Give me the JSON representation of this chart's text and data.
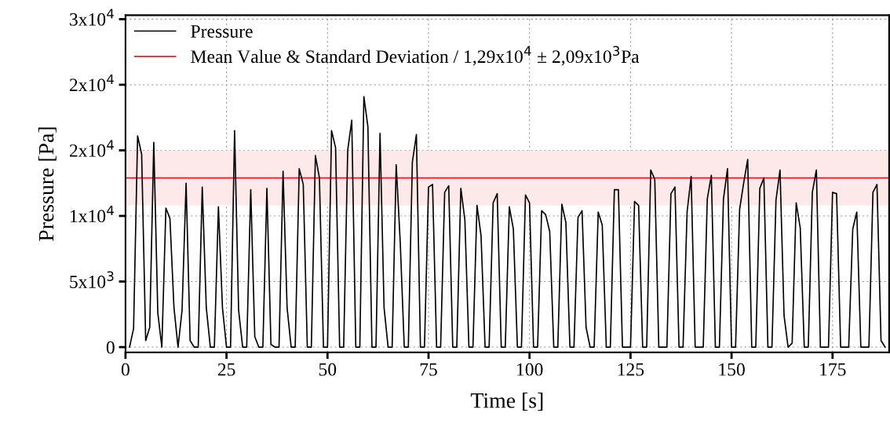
{
  "chart_data": {
    "type": "line",
    "xlabel": "Time [s]",
    "ylabel": "Pressure [Pa]",
    "x": [
      1,
      2,
      3,
      4,
      5,
      6,
      7,
      8,
      9,
      10,
      11,
      12,
      13,
      14,
      15,
      16,
      17,
      18,
      19,
      20,
      21,
      22,
      23,
      24,
      25,
      26,
      27,
      28,
      29,
      30,
      31,
      32,
      33,
      34,
      35,
      36,
      37,
      38,
      39,
      40,
      41,
      42,
      43,
      44,
      45,
      46,
      47,
      48,
      49,
      50,
      51,
      52,
      53,
      54,
      55,
      56,
      57,
      58,
      59,
      60,
      61,
      62,
      63,
      64,
      65,
      66,
      67,
      68,
      69,
      70,
      71,
      72,
      73,
      74,
      75,
      76,
      77,
      78,
      79,
      80,
      81,
      82,
      83,
      84,
      85,
      86,
      87,
      88,
      89,
      90,
      91,
      92,
      93,
      94,
      95,
      96,
      97,
      98,
      99,
      100,
      101,
      102,
      103,
      104,
      105,
      106,
      107,
      108,
      109,
      110,
      111,
      112,
      113,
      114,
      115,
      116,
      117,
      118,
      119,
      120,
      121,
      122,
      123,
      124,
      125,
      126,
      127,
      128,
      129,
      130,
      131,
      132,
      133,
      134,
      135,
      136,
      137,
      138,
      139,
      140,
      141,
      142,
      143,
      144,
      145,
      146,
      147,
      148,
      149,
      150,
      151,
      152,
      153,
      154,
      155,
      156,
      157,
      158,
      159,
      160,
      161,
      162,
      163,
      164,
      165,
      166,
      167,
      168,
      169,
      170,
      171,
      172,
      173,
      174,
      175,
      176,
      177,
      178,
      179,
      180,
      181,
      182,
      183,
      184,
      185,
      186,
      187,
      188
    ],
    "series": [
      {
        "name": "Pressure",
        "color": "#000000",
        "values": [
          0,
          1400,
          16100,
          14700,
          500,
          1500,
          15600,
          2600,
          0,
          10600,
          9800,
          3000,
          0,
          2800,
          12500,
          500,
          0,
          0,
          12200,
          3000,
          0,
          0,
          10700,
          3000,
          0,
          0,
          16500,
          2800,
          0,
          0,
          12000,
          800,
          0,
          0,
          12100,
          200,
          0,
          0,
          13400,
          3000,
          0,
          0,
          13600,
          12400,
          0,
          0,
          14600,
          12900,
          0,
          0,
          16500,
          15200,
          0,
          0,
          15000,
          17300,
          0,
          0,
          19100,
          16800,
          0,
          0,
          16300,
          3000,
          0,
          0,
          13900,
          8000,
          0,
          0,
          14100,
          16200,
          0,
          0,
          12200,
          12400,
          0,
          0,
          11800,
          12300,
          0,
          0,
          12100,
          9700,
          0,
          0,
          10800,
          8500,
          0,
          0,
          11000,
          11700,
          0,
          0,
          10700,
          9000,
          0,
          0,
          11600,
          11000,
          0,
          0,
          10400,
          10100,
          8800,
          0,
          0,
          10900,
          9500,
          0,
          0,
          9900,
          10400,
          1500,
          0,
          0,
          10300,
          9300,
          0,
          0,
          12000,
          12000,
          0,
          0,
          0,
          11100,
          10800,
          0,
          0,
          13500,
          12800,
          0,
          0,
          0,
          11700,
          12200,
          0,
          0,
          10300,
          13000,
          0,
          0,
          0,
          11300,
          13100,
          0,
          0,
          11300,
          13600,
          0,
          0,
          10500,
          12500,
          14300,
          0,
          0,
          12100,
          12900,
          0,
          0,
          11200,
          13500,
          2400,
          0,
          300,
          11000,
          9100,
          0,
          0,
          11800,
          13500,
          0,
          0,
          0,
          11800,
          11700,
          0,
          0,
          0,
          9000,
          10300,
          0,
          0,
          0,
          11800,
          12400,
          500,
          0
        ]
      }
    ],
    "ref_lines": [
      {
        "axis": "y",
        "value": 12900,
        "label": "Mean Value & Standard Deviation / 1,29x10$^{4}$ ± 2,09x10$^{3}$Pa",
        "color": "#e81c1c"
      }
    ],
    "bands": [
      {
        "axis": "y",
        "from": 10810,
        "to": 14990,
        "color": "#fde9e9"
      }
    ],
    "xlim": [
      0,
      189
    ],
    "xticks": [
      0,
      25,
      50,
      75,
      100,
      125,
      150,
      175
    ],
    "ylim": [
      -400,
      25300
    ],
    "yticks": [
      0,
      {
        "value": 5000,
        "label": "5x10$^{3}$"
      },
      {
        "value": 10000,
        "label": "1x10$^{4}$"
      },
      {
        "value": 15000,
        "label": "2x10$^{4}$"
      },
      {
        "value": 20000,
        "label": "2x10$^{4}$"
      },
      {
        "value": 25000,
        "label": "3x10$^{4}$"
      }
    ],
    "grid": true,
    "legend": "top left",
    "marker": "none",
    "line_style": "solid"
  }
}
